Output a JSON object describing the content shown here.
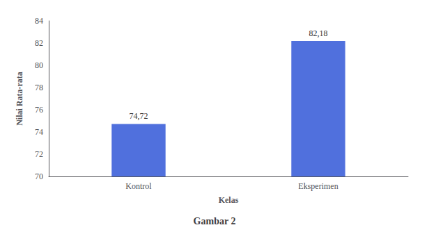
{
  "chart_data": {
    "type": "bar",
    "title": "Gambar 2",
    "xlabel": "Kelas",
    "ylabel": "Nilai Rata-rata",
    "categories": [
      "Kontrol",
      "Eksperimen"
    ],
    "values": [
      74.72,
      82.18
    ],
    "value_labels": [
      "74,72",
      "82,18"
    ],
    "data_labels": true,
    "ylim": [
      70,
      84
    ],
    "yticks": [
      70,
      72,
      74,
      76,
      78,
      80,
      82,
      84
    ],
    "grid": false
  }
}
